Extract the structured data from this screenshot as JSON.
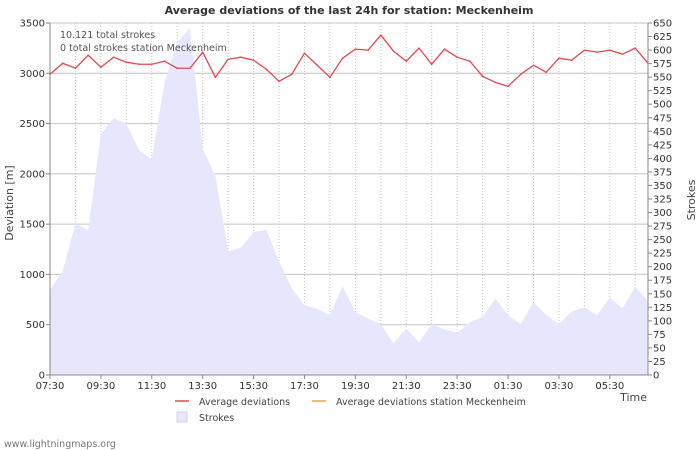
{
  "footer": "www.lightningmaps.org",
  "colors": {
    "deviation": "#e8474e",
    "station": "#f0a050",
    "strokes_fill": "#e6e6fc",
    "strokes_stroke": "#d2d2f2",
    "grid": "#c4c4c4",
    "text": "#333333"
  },
  "chart_data": {
    "type": "line",
    "title": "Average deviations of the last 24h for station: Meckenheim",
    "annotations": [
      "10.121 total strokes",
      "0 total strokes station Meckenheim"
    ],
    "xlabel": "Time",
    "ylabel_left": "Deviation  [m]",
    "ylabel_right": "Strokes",
    "x_ticks": [
      "07:30",
      "09:30",
      "11:30",
      "13:30",
      "15:30",
      "17:30",
      "19:30",
      "21:30",
      "23:30",
      "01:30",
      "03:30",
      "05:30"
    ],
    "y_left": {
      "min": 0,
      "max": 3500,
      "ticks": [
        0,
        500,
        1000,
        1500,
        2000,
        2500,
        3000,
        3500
      ]
    },
    "y_right": {
      "min": 0,
      "max": 650,
      "ticks": [
        0,
        25,
        50,
        75,
        100,
        125,
        150,
        175,
        200,
        225,
        250,
        275,
        300,
        325,
        350,
        375,
        400,
        425,
        450,
        475,
        500,
        525,
        550,
        575,
        600,
        625,
        650
      ]
    },
    "x_range_hours": [
      0,
      23.5
    ],
    "series": [
      {
        "name": "Average deviations",
        "axis": "left",
        "style": "line",
        "x_hours": [
          0,
          0.5,
          1,
          1.5,
          2,
          2.5,
          3,
          3.5,
          4,
          4.5,
          5,
          5.5,
          6,
          6.5,
          7,
          7.5,
          8,
          8.5,
          9,
          9.5,
          10,
          10.5,
          11,
          11.5,
          12,
          12.5,
          13,
          13.5,
          14,
          14.5,
          15,
          15.5,
          16,
          16.5,
          17,
          17.5,
          18,
          18.5,
          19,
          19.5,
          20,
          20.5,
          21,
          21.5,
          22,
          22.5,
          23,
          23.5
        ],
        "values": [
          2990,
          3100,
          3050,
          3180,
          3060,
          3160,
          3110,
          3090,
          3090,
          3120,
          3050,
          3050,
          3210,
          2960,
          3140,
          3160,
          3130,
          3040,
          2920,
          2990,
          3200,
          3080,
          2960,
          3150,
          3240,
          3230,
          3380,
          3220,
          3120,
          3250,
          3090,
          3240,
          3160,
          3120,
          2970,
          2910,
          2870,
          2990,
          3080,
          3010,
          3150,
          3130,
          3230,
          3210,
          3230,
          3190,
          3250,
          3100
        ]
      },
      {
        "name": "Average deviations station Meckenheim",
        "axis": "left",
        "style": "line",
        "x_hours": [],
        "values": []
      },
      {
        "name": "Strokes",
        "axis": "right",
        "style": "area",
        "x_hours": [
          0,
          0.5,
          1,
          1.5,
          2,
          2.5,
          3,
          3.5,
          4,
          4.5,
          5,
          5.5,
          6,
          6.5,
          7,
          7.5,
          8,
          8.5,
          9,
          9.5,
          10,
          10.5,
          11,
          11.5,
          12,
          12.5,
          13,
          13.5,
          14,
          14.5,
          15,
          15.5,
          16,
          16.5,
          17,
          17.5,
          18,
          18.5,
          19,
          19.5,
          20,
          20.5,
          21,
          21.5,
          22,
          22.5,
          23,
          23.5
        ],
        "values": [
          157,
          192,
          280,
          267,
          445,
          474,
          464,
          415,
          398,
          540,
          614,
          640,
          418,
          368,
          228,
          235,
          264,
          268,
          210,
          160,
          129,
          122,
          110,
          164,
          116,
          104,
          94,
          58,
          86,
          60,
          94,
          84,
          78,
          98,
          107,
          141,
          110,
          94,
          134,
          111,
          94,
          117,
          125,
          110,
          143,
          123,
          163,
          136
        ]
      }
    ]
  }
}
